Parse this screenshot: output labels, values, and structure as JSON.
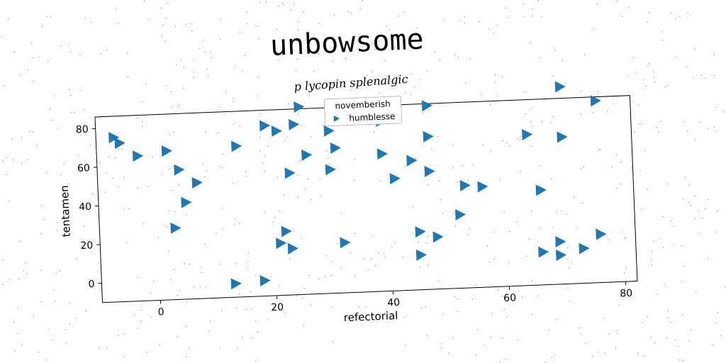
{
  "title": "unbowsome",
  "subtitle": "p lycopin splenalgic",
  "chart_data": {
    "type": "scatter",
    "xlabel": "refectorial",
    "ylabel": "tentamen",
    "xlim": [
      -10,
      82
    ],
    "ylim": [
      -10,
      86
    ],
    "xticks": [
      0,
      20,
      40,
      60,
      80
    ],
    "yticks": [
      0,
      20,
      40,
      60,
      80
    ],
    "grid": false,
    "legend": {
      "title": "novemberish",
      "placement": "top-center"
    },
    "marker": "triangle-right",
    "color": "#1f77b4",
    "series": [
      {
        "name": "humblesse",
        "points": [
          [
            -7,
            75
          ],
          [
            -6,
            72
          ],
          [
            -3,
            65
          ],
          [
            2,
            67
          ],
          [
            4,
            57
          ],
          [
            7,
            50
          ],
          [
            5,
            40
          ],
          [
            3,
            27
          ],
          [
            14,
            68
          ],
          [
            19,
            78
          ],
          [
            21,
            75
          ],
          [
            24,
            78
          ],
          [
            23,
            53
          ],
          [
            26,
            62
          ],
          [
            25,
            87
          ],
          [
            30,
            74
          ],
          [
            30,
            54
          ],
          [
            31,
            65
          ],
          [
            39,
            61
          ],
          [
            41,
            48
          ],
          [
            39,
            78
          ],
          [
            44,
            57
          ],
          [
            47,
            85
          ],
          [
            47,
            69
          ],
          [
            47,
            51
          ],
          [
            53,
            43
          ],
          [
            56,
            42
          ],
          [
            52,
            28
          ],
          [
            64,
            68
          ],
          [
            66,
            39
          ],
          [
            70,
            92
          ],
          [
            70,
            66
          ],
          [
            76,
            84
          ],
          [
            21,
            17
          ],
          [
            22,
            23
          ],
          [
            23,
            14
          ],
          [
            32,
            16
          ],
          [
            13,
            -3
          ],
          [
            18,
            -2
          ],
          [
            45,
            20
          ],
          [
            45,
            8
          ],
          [
            48,
            17
          ],
          [
            66,
            7
          ],
          [
            69,
            12
          ],
          [
            69,
            5
          ],
          [
            73,
            8
          ],
          [
            76,
            15
          ]
        ]
      }
    ]
  }
}
